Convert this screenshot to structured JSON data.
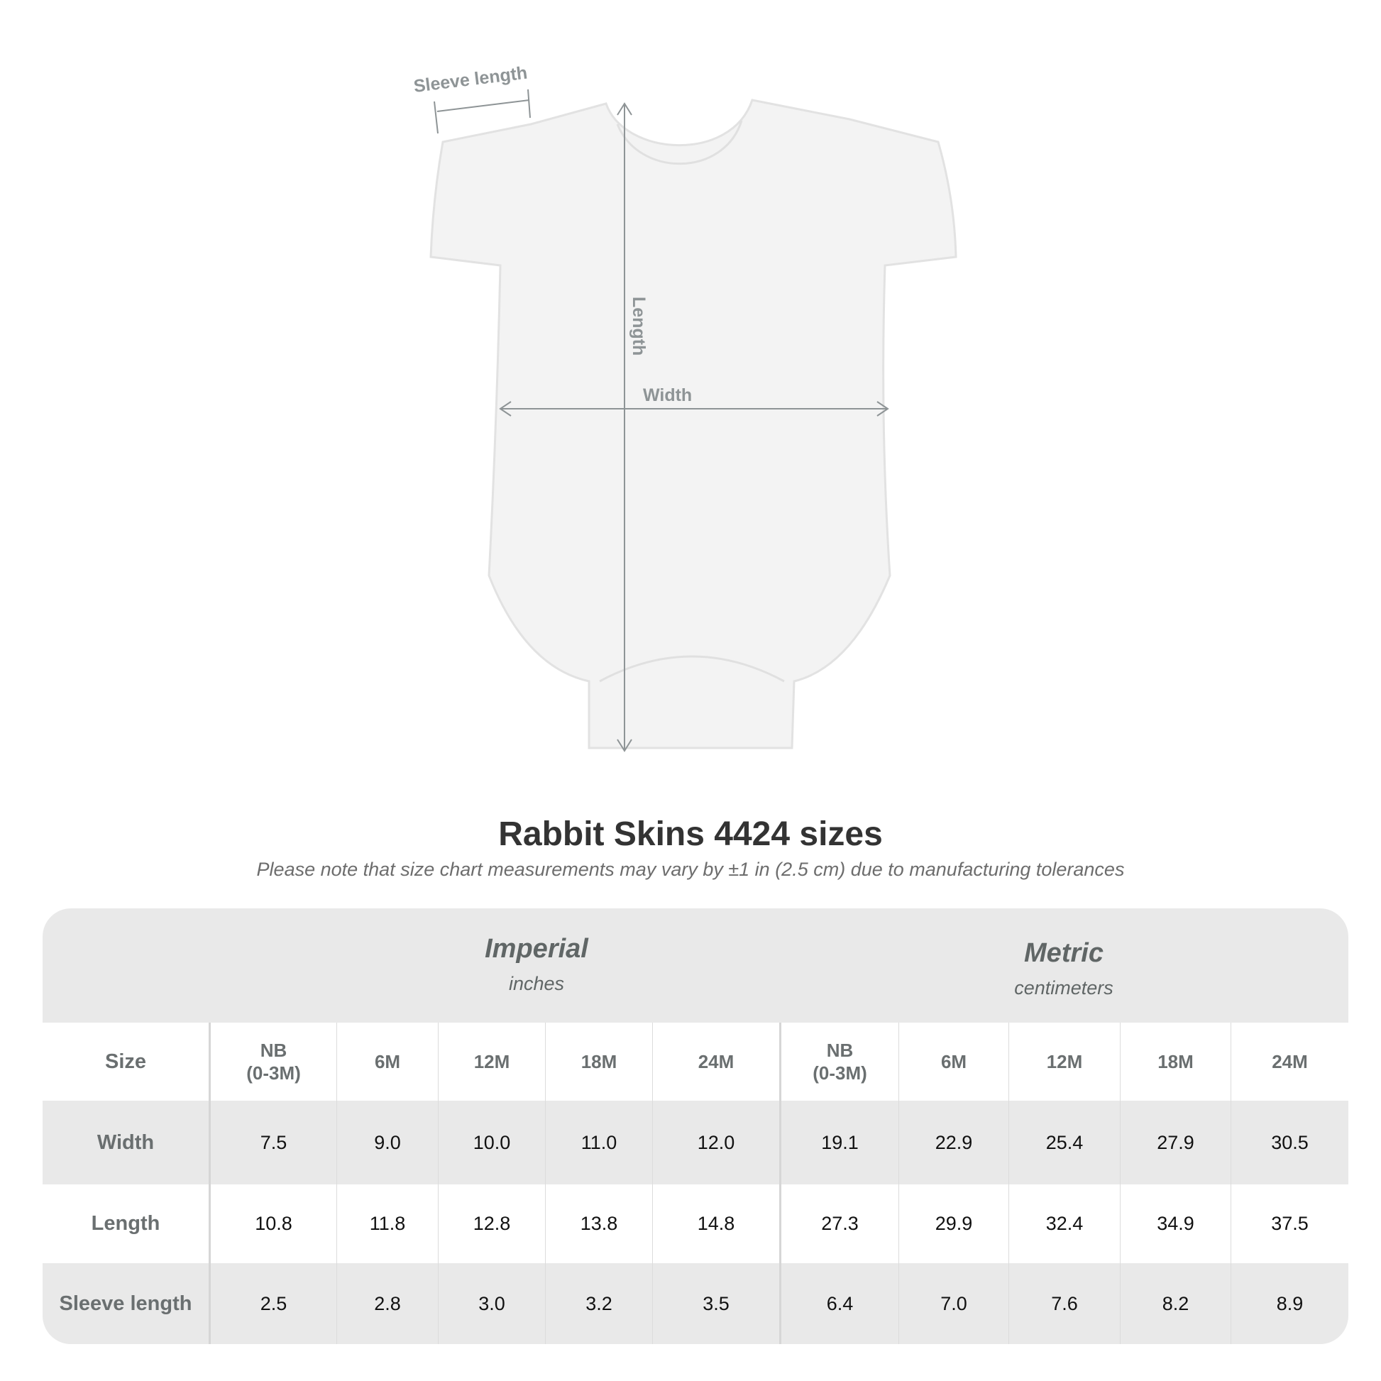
{
  "diagram": {
    "labels": {
      "sleeve": "Sleeve length",
      "length": "Length",
      "width": "Width"
    }
  },
  "title": "Rabbit Skins 4424 sizes",
  "subtitle": "Please note that size chart measurements may vary by ±1 in (2.5 cm) due to manufacturing tolerances",
  "table": {
    "imperial": {
      "name": "Imperial",
      "unit": "inches"
    },
    "metric": {
      "name": "Metric",
      "unit": "centimeters"
    },
    "size_label": "Size",
    "sizes": [
      "NB\n(0-3M)",
      "6M",
      "12M",
      "18M",
      "24M",
      "NB\n(0-3M)",
      "6M",
      "12M",
      "18M",
      "24M"
    ],
    "rows": [
      {
        "label": "Width",
        "values": [
          "7.5",
          "9.0",
          "10.0",
          "11.0",
          "12.0",
          "19.1",
          "22.9",
          "25.4",
          "27.9",
          "30.5"
        ]
      },
      {
        "label": "Length",
        "values": [
          "10.8",
          "11.8",
          "12.8",
          "13.8",
          "14.8",
          "27.3",
          "29.9",
          "32.4",
          "34.9",
          "37.5"
        ]
      },
      {
        "label": "Sleeve length",
        "values": [
          "2.5",
          "2.8",
          "3.0",
          "3.2",
          "3.5",
          "6.4",
          "7.0",
          "7.6",
          "8.2",
          "8.9"
        ]
      }
    ]
  }
}
